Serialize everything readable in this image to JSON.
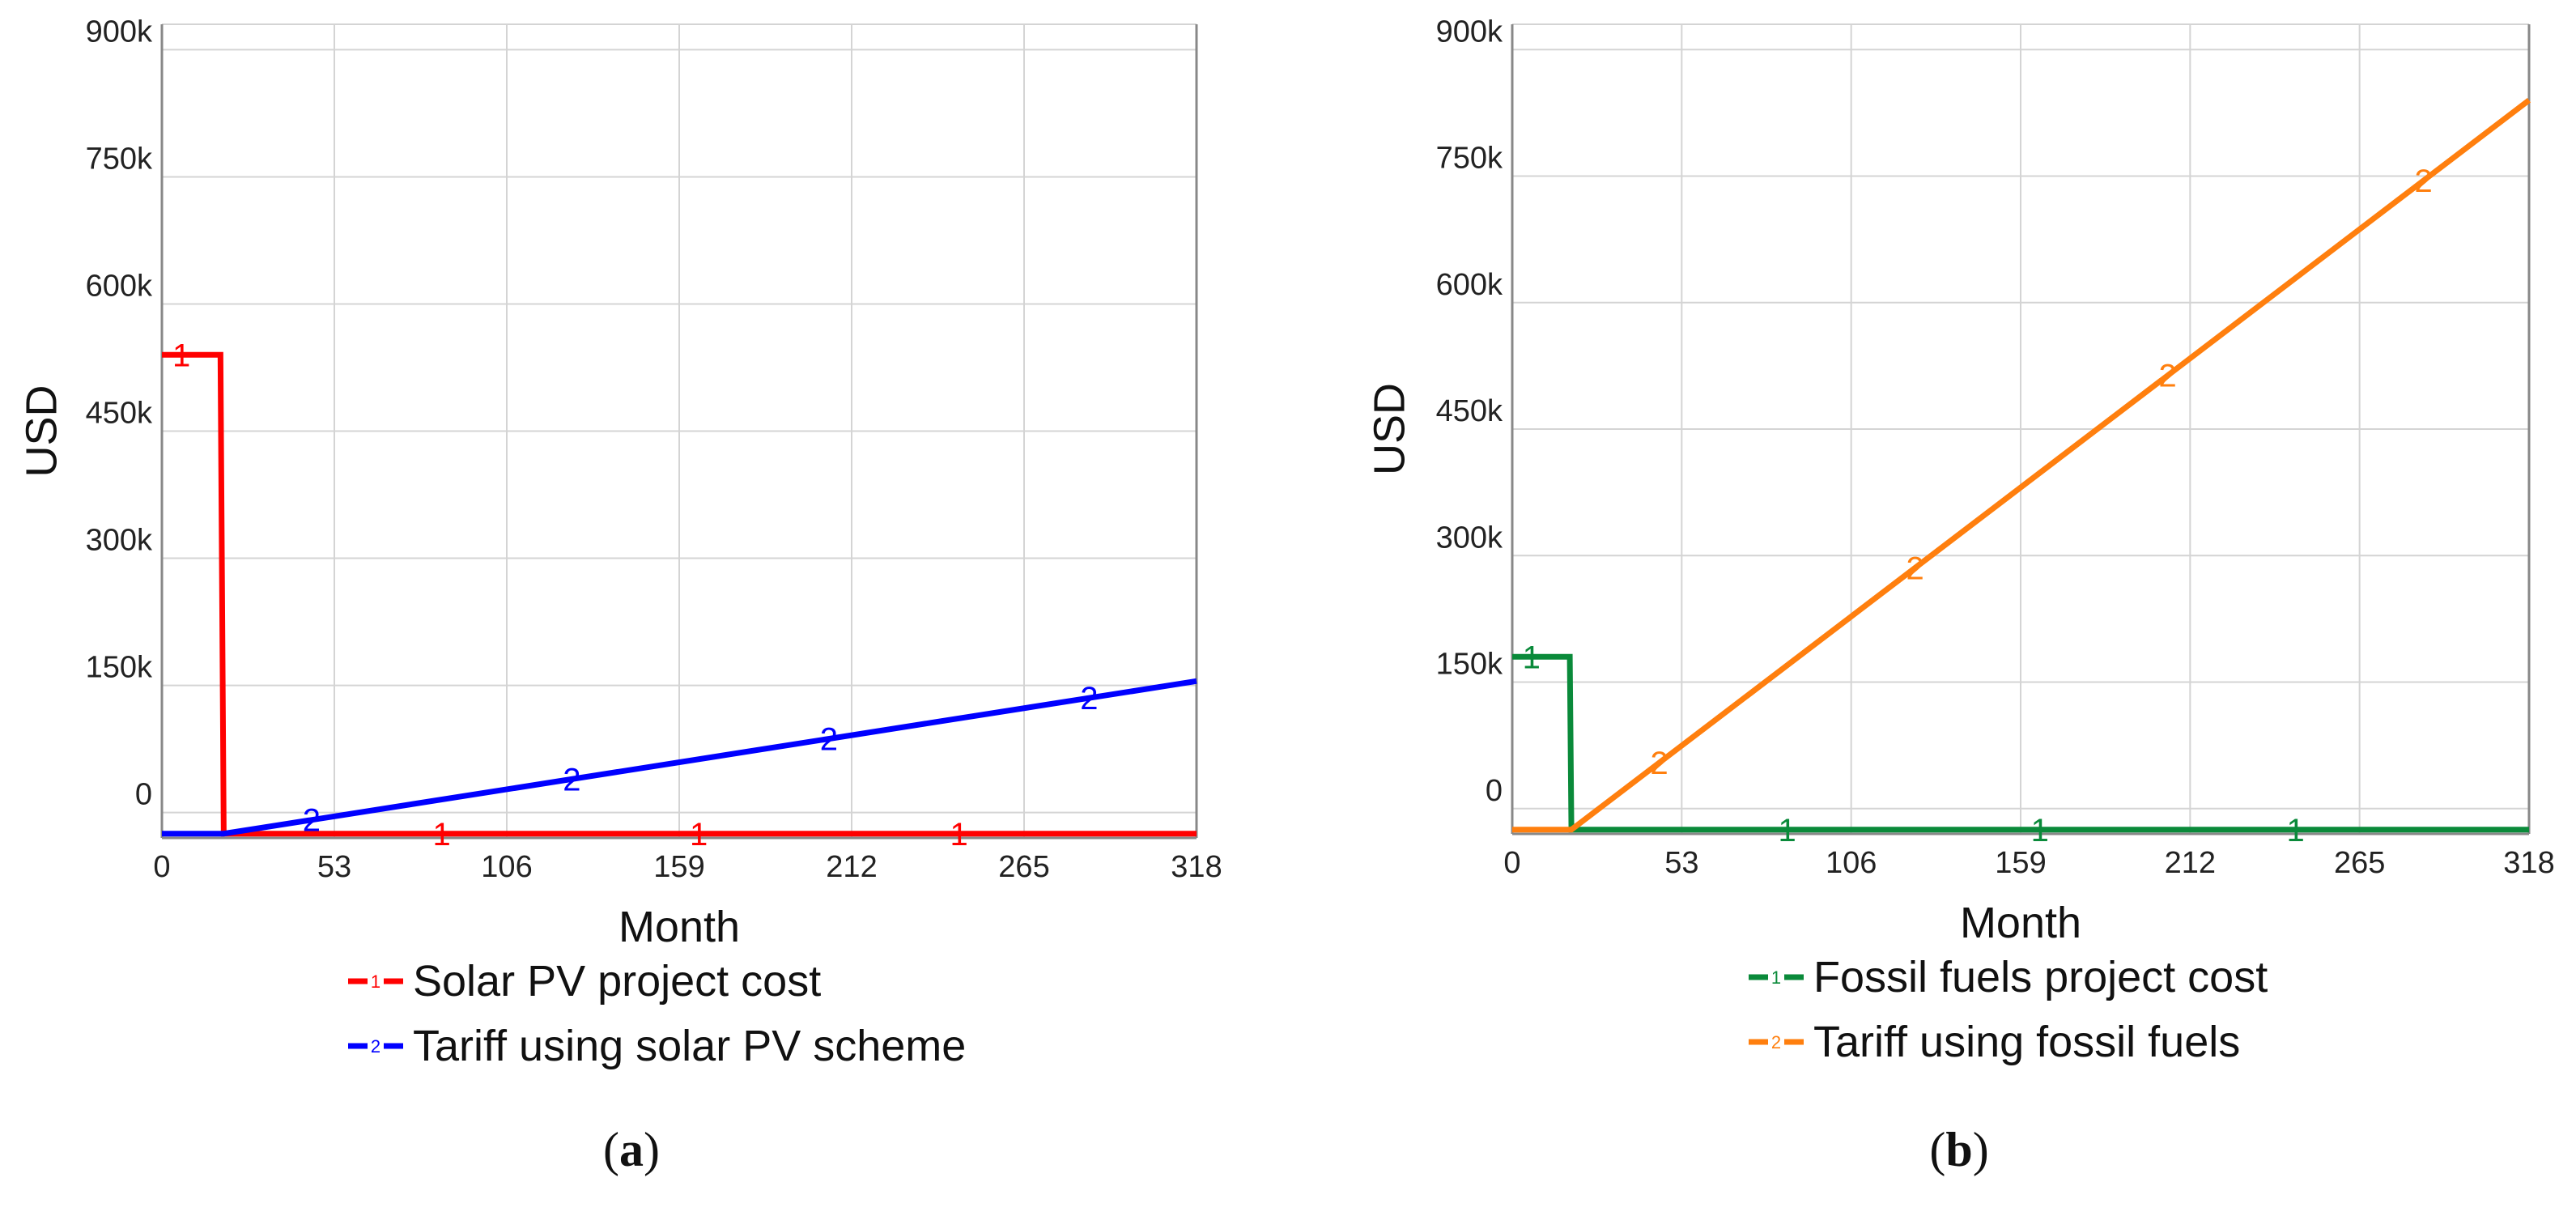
{
  "chart_data": [
    {
      "type": "line",
      "panel_label_prefix": "(",
      "panel_label_letter": "a",
      "panel_label_suffix": ")",
      "xlabel": "Month",
      "ylabel": "USD",
      "xlim": [
        0,
        318
      ],
      "ylim": [
        -30000,
        930000
      ],
      "x_ticks": [
        0,
        53,
        106,
        159,
        212,
        265,
        318
      ],
      "x_tick_labels": [
        "0",
        "53",
        "106",
        "159",
        "212",
        "265",
        "318"
      ],
      "y_ticks": [
        0,
        150000,
        300000,
        450000,
        600000,
        750000,
        900000
      ],
      "y_tick_labels": [
        "0",
        "150k",
        "300k",
        "450k",
        "600k",
        "750k",
        "900k"
      ],
      "grid": true,
      "legend_position": "bottom",
      "series": [
        {
          "name": "Solar PV project cost",
          "marker_label": "1",
          "color": "#ff0000",
          "points": [
            [
              0,
              540000
            ],
            [
              18,
              540000
            ],
            [
              19,
              -25000
            ],
            [
              318,
              -25000
            ]
          ],
          "marker_x": [
            6,
            86,
            165,
            245
          ]
        },
        {
          "name": "Tariff using solar PV scheme",
          "marker_label": "2",
          "color": "#0000ff",
          "points": [
            [
              0,
              -25000
            ],
            [
              19,
              -25000
            ],
            [
              318,
              155000
            ]
          ],
          "marker_x": [
            46,
            126,
            205,
            285
          ]
        }
      ]
    },
    {
      "type": "line",
      "panel_label_prefix": "(",
      "panel_label_letter": "b",
      "panel_label_suffix": ")",
      "xlabel": "Month",
      "ylabel": "USD",
      "xlim": [
        0,
        318
      ],
      "ylim": [
        -30000,
        930000
      ],
      "x_ticks": [
        0,
        53,
        106,
        159,
        212,
        265,
        318
      ],
      "x_tick_labels": [
        "0",
        "53",
        "106",
        "159",
        "212",
        "265",
        "318"
      ],
      "y_ticks": [
        0,
        150000,
        300000,
        450000,
        600000,
        750000,
        900000
      ],
      "y_tick_labels": [
        "0",
        "150k",
        "300k",
        "450k",
        "600k",
        "750k",
        "900k"
      ],
      "grid": true,
      "legend_position": "bottom",
      "series": [
        {
          "name": "Fossil fuels project cost",
          "marker_label": "1",
          "color": "#0a8a3a",
          "points": [
            [
              0,
              180000
            ],
            [
              18,
              180000
            ],
            [
              18.5,
              -25000
            ],
            [
              318,
              -25000
            ]
          ],
          "marker_x": [
            6,
            86,
            165,
            245
          ]
        },
        {
          "name": "Tariff using fossil fuels",
          "marker_label": "2",
          "color": "#ff7f0e",
          "points": [
            [
              0,
              -25000
            ],
            [
              18.5,
              -25000
            ],
            [
              318,
              840000
            ]
          ],
          "marker_x": [
            46,
            126,
            205,
            285
          ]
        }
      ]
    }
  ]
}
